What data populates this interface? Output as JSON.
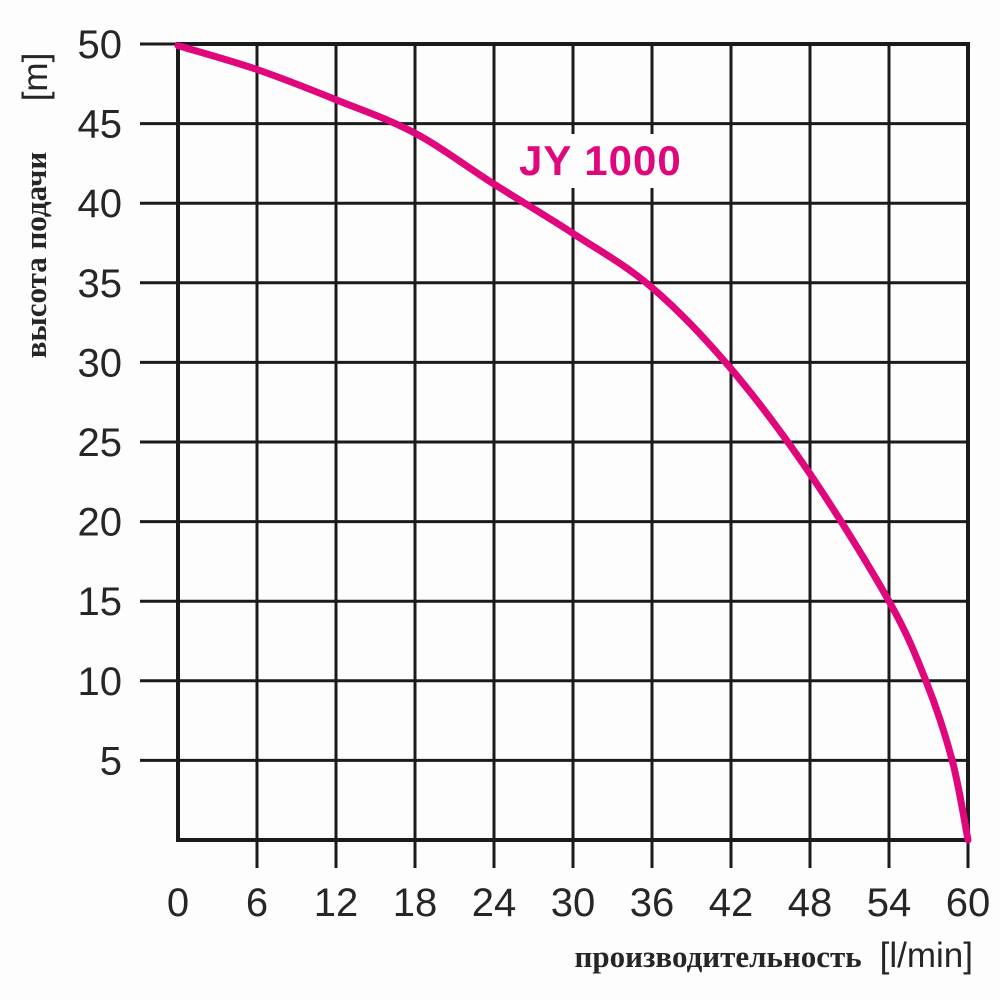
{
  "chart_data": {
    "type": "line",
    "title": "JY 1000",
    "xlabel": "производительность",
    "xunit": "[l/min]",
    "ylabel": "высота подачи",
    "yunit": "[m]",
    "xlim": [
      0,
      60
    ],
    "ylim": [
      0,
      50
    ],
    "xticks": [
      0,
      6,
      12,
      18,
      24,
      30,
      36,
      42,
      48,
      54,
      60
    ],
    "yticks": [
      5,
      10,
      15,
      20,
      25,
      30,
      35,
      40,
      45,
      50
    ],
    "grid": true,
    "legend_position": "none",
    "series": [
      {
        "name": "JY 1000",
        "color": "#e0067b",
        "points": [
          [
            0,
            49.9
          ],
          [
            6,
            48.4
          ],
          [
            12,
            46.5
          ],
          [
            18,
            44.4
          ],
          [
            24,
            41.2
          ],
          [
            30,
            38.1
          ],
          [
            36,
            34.7
          ],
          [
            42,
            29.6
          ],
          [
            48,
            23.0
          ],
          [
            54,
            15.0
          ],
          [
            56.8,
            10.0
          ],
          [
            58.8,
            5.0
          ],
          [
            60,
            0
          ]
        ]
      }
    ],
    "colors": {
      "grid": "#1b1b1b",
      "text": "#262626",
      "curve": "#e0067b",
      "background": "#fdfdfd"
    }
  }
}
